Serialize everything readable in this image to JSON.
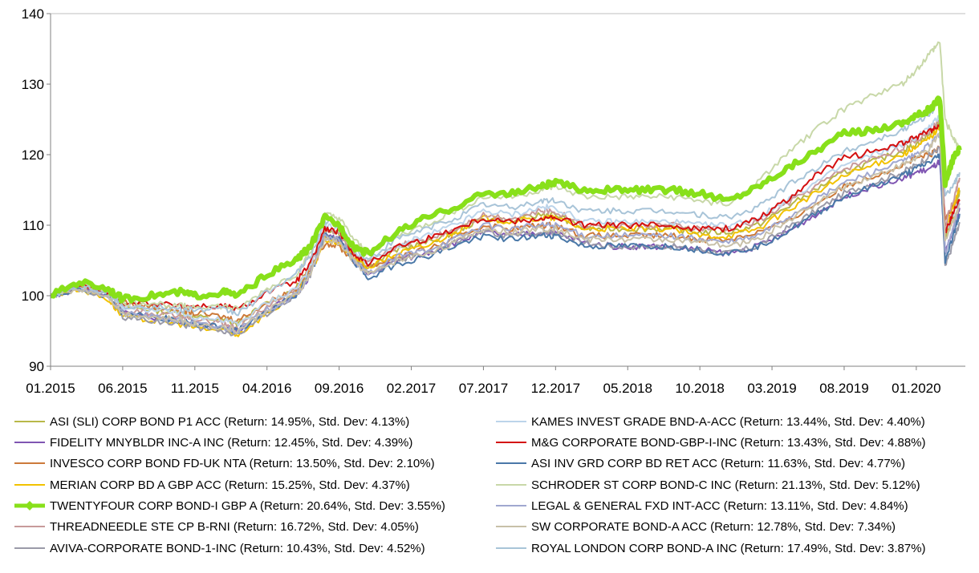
{
  "chart_data": {
    "type": "line",
    "title": "",
    "xlabel": "",
    "ylabel": "",
    "ylim": [
      90,
      140
    ],
    "y_ticks": [
      90,
      100,
      110,
      120,
      130,
      140
    ],
    "x_range": [
      "2015-01",
      "2020-04"
    ],
    "x_ticks": [
      "01.2015",
      "06.2015",
      "11.2015",
      "04.2016",
      "09.2016",
      "02.2017",
      "07.2017",
      "12.2017",
      "05.2018",
      "10.2018",
      "03.2019",
      "08.2019",
      "01.2020"
    ],
    "grid": "horizontal-top-only",
    "legend_position": "bottom",
    "x": [
      "2015-01",
      "2015-03",
      "2015-05",
      "2015-06",
      "2015-08",
      "2015-10",
      "2015-11",
      "2016-01",
      "2016-02",
      "2016-04",
      "2016-06",
      "2016-07",
      "2016-08",
      "2016-09",
      "2016-10",
      "2016-11",
      "2017-01",
      "2017-03",
      "2017-05",
      "2017-07",
      "2017-09",
      "2017-11",
      "2017-12",
      "2018-02",
      "2018-04",
      "2018-06",
      "2018-08",
      "2018-10",
      "2018-12",
      "2019-02",
      "2019-04",
      "2019-06",
      "2019-08",
      "2019-10",
      "2019-12",
      "2020-01",
      "2020-02",
      "2020-02-20",
      "2020-03",
      "2020-03-20",
      "2020-04"
    ],
    "series": [
      {
        "name": "ASI (SLI) CORP BOND P1 ACC",
        "return": "14.95%",
        "std_dev": "4.13%",
        "color": "#b8b848",
        "width": 2,
        "values": [
          100,
          101.5,
          100.5,
          98.5,
          98,
          97.5,
          97,
          96.5,
          96,
          99,
          101,
          104,
          109.5,
          109,
          106,
          104,
          106.5,
          107.5,
          109,
          111,
          110.5,
          111.5,
          111.5,
          109.5,
          109.5,
          109.5,
          109.5,
          109,
          109,
          110,
          112.5,
          115,
          117.5,
          119,
          120.5,
          121.5,
          123,
          124.5,
          108,
          112,
          114.95
        ]
      },
      {
        "name": "FIDELITY MNYBLDR INC-A INC",
        "return": "12.45%",
        "std_dev": "4.39%",
        "color": "#7f55b2",
        "width": 2,
        "values": [
          100,
          101,
          100,
          97.5,
          97,
          96.5,
          96,
          95.5,
          95,
          98,
          100,
          103,
          108.5,
          108,
          105,
          103,
          105,
          106,
          107.5,
          109,
          108.5,
          109,
          109,
          107.5,
          107,
          107,
          107,
          106.5,
          106,
          107,
          109,
          111.5,
          114,
          115.5,
          116.5,
          117.5,
          118,
          119,
          106,
          110,
          112.45
        ]
      },
      {
        "name": "INVESCO CORP BOND FD-UK NTA",
        "return": "13.50%",
        "std_dev": "2.10%",
        "color": "#cc7a3a",
        "width": 2,
        "values": [
          100,
          101.5,
          100.5,
          99,
          98.5,
          98,
          97.5,
          97,
          96.5,
          99,
          101,
          103.5,
          107.5,
          107,
          105,
          104,
          105.5,
          106.5,
          108,
          110,
          109.5,
          110,
          110,
          108.5,
          108.5,
          108.5,
          108.5,
          108,
          108,
          109,
          110.5,
          113,
          115.5,
          117,
          118.5,
          119.5,
          120,
          121,
          111,
          113,
          113.5
        ]
      },
      {
        "name": "MERIAN CORP BD A GBP ACC",
        "return": "15.25%",
        "std_dev": "4.37%",
        "color": "#f2c200",
        "width": 2,
        "values": [
          100,
          101,
          99.5,
          97,
          96.5,
          96,
          95.5,
          95,
          94.5,
          97.5,
          100,
          103,
          108,
          107.5,
          105.5,
          104,
          106,
          107,
          109,
          111,
          110.5,
          111,
          111,
          109.5,
          109.5,
          109.5,
          109.5,
          108.5,
          108.5,
          109.5,
          112,
          114.5,
          117,
          118.5,
          120,
          121,
          122.5,
          124,
          109,
          113,
          115.25
        ]
      },
      {
        "name": "TWENTYFOUR CORP BOND-I GBP A",
        "return": "20.64%",
        "std_dev": "3.55%",
        "color": "#88e01a",
        "width": 6,
        "values": [
          100,
          102,
          101,
          99.5,
          100,
          100.5,
          100,
          100.5,
          100,
          103,
          105,
          107,
          111,
          110,
          107,
          106,
          109,
          111,
          112.5,
          114.5,
          114.5,
          115.5,
          116,
          115,
          115,
          115,
          115,
          114.5,
          113.5,
          115.5,
          118,
          120.5,
          123,
          123.5,
          124.5,
          125.5,
          126.5,
          128,
          116,
          120,
          120.64
        ]
      },
      {
        "name": "THREADNEEDLE STE CP B-RNI",
        "return": "16.72%",
        "std_dev": "4.05%",
        "color": "#c89a9a",
        "width": 2,
        "values": [
          100,
          101.5,
          100.5,
          98,
          97.5,
          97,
          96.5,
          96,
          95.5,
          98.5,
          101,
          104,
          109.5,
          109,
          106,
          104.5,
          107,
          108,
          109.5,
          111.5,
          111,
          112,
          112,
          110,
          110,
          110,
          110,
          109.5,
          109.5,
          110.5,
          113,
          115.5,
          118,
          119.5,
          121,
          122,
          123.5,
          125,
          110,
          114,
          116.72
        ]
      },
      {
        "name": "AVIVA-CORPORATE BOND-1-INC",
        "return": "10.43%",
        "std_dev": "4.52%",
        "color": "#9a9aa8",
        "width": 2,
        "values": [
          100,
          101,
          100,
          97,
          96.5,
          96,
          95.5,
          95,
          94.5,
          97.5,
          100,
          103,
          108.5,
          108,
          105,
          103,
          105,
          106,
          107.5,
          109,
          108.5,
          109,
          109,
          107.5,
          107,
          107,
          107,
          106.5,
          106,
          107,
          109.5,
          112,
          114.5,
          116,
          117.5,
          118.5,
          120,
          121,
          104,
          108,
          110.43
        ]
      },
      {
        "name": "KAMES INVEST GRADE BND-A-ACC",
        "return": "13.44%",
        "std_dev": "4.40%",
        "color": "#bcd4ea",
        "width": 2,
        "values": [
          100,
          101.5,
          100.5,
          98.5,
          98,
          97.5,
          97,
          96.5,
          96,
          99,
          101,
          104,
          110,
          109.5,
          106.5,
          104.5,
          107,
          108.5,
          110,
          112,
          111.5,
          112.5,
          112.5,
          110.5,
          110.5,
          110.5,
          110.5,
          110,
          110,
          111,
          113.5,
          116,
          118.5,
          120,
          121.5,
          122.5,
          124,
          125.5,
          109,
          112,
          113.44
        ]
      },
      {
        "name": "M&G CORPORATE BOND-GBP-I-INC",
        "return": "13.43%",
        "std_dev": "4.88%",
        "color": "#d41010",
        "width": 2,
        "values": [
          100,
          101.5,
          100.5,
          99,
          99,
          98.5,
          98.5,
          98.5,
          98,
          100.5,
          102,
          104.5,
          109.5,
          109,
          106,
          104.5,
          107,
          108,
          109.5,
          111,
          110.5,
          111,
          111,
          110,
          110,
          110,
          110,
          109.5,
          109.5,
          111,
          113.5,
          117,
          119.5,
          120.5,
          121.5,
          122.5,
          123.5,
          124,
          109,
          112,
          113.43
        ]
      },
      {
        "name": "ASI INV GRD CORP BD RET ACC",
        "return": "11.63%",
        "std_dev": "4.77%",
        "color": "#4a78a8",
        "width": 2,
        "values": [
          100,
          101,
          100,
          97.5,
          97,
          96.5,
          96,
          95.5,
          95,
          98,
          100,
          103,
          108.5,
          108,
          105,
          102.5,
          104.5,
          105.5,
          107,
          108.5,
          108,
          108.5,
          108.5,
          107,
          107,
          107,
          107,
          106.5,
          106,
          107,
          109,
          111.5,
          114,
          115.5,
          117,
          118,
          119,
          120,
          105,
          109,
          111.63
        ]
      },
      {
        "name": "SCHRODER ST CORP BOND-C INC",
        "return": "21.13%",
        "std_dev": "5.12%",
        "color": "#c8d8a8",
        "width": 2,
        "values": [
          100,
          101.5,
          101,
          99,
          99,
          98.5,
          98.5,
          98.5,
          98,
          101,
          103,
          106,
          111.5,
          111,
          108,
          106,
          108.5,
          110,
          112,
          114,
          114,
          115,
          115.5,
          114,
          114,
          114,
          114,
          113.5,
          113,
          116,
          120,
          123.5,
          126.5,
          128.5,
          130,
          132,
          134.5,
          136,
          125,
          122,
          121.13
        ]
      },
      {
        "name": "LEGAL & GENERAL FXD INT-ACC",
        "return": "13.11%",
        "std_dev": "4.84%",
        "color": "#a0a8d0",
        "width": 2,
        "values": [
          100,
          101,
          100,
          97.5,
          97,
          96.5,
          96,
          95.5,
          95,
          98,
          100,
          103,
          108.5,
          108,
          105,
          103,
          105.5,
          106.5,
          108,
          110,
          109.5,
          110,
          110,
          108.5,
          108.5,
          108.5,
          108.5,
          108,
          107.5,
          108.5,
          111,
          113.5,
          116,
          117.5,
          119,
          120,
          121.5,
          123,
          106,
          110,
          113.11
        ]
      },
      {
        "name": "SW CORPORATE BOND-A ACC",
        "return": "12.78%",
        "std_dev": "7.34%",
        "color": "#c8c0a8",
        "width": 2,
        "values": [
          100,
          101,
          100,
          97.5,
          97,
          96.5,
          96,
          95.5,
          95,
          98,
          100,
          103,
          108,
          107.5,
          105,
          103,
          105,
          106,
          107.5,
          109.5,
          109,
          109.5,
          109.5,
          108,
          108,
          108,
          108,
          107.5,
          107,
          108,
          110.5,
          113,
          115.5,
          117,
          118.5,
          119.5,
          121,
          123,
          108,
          111,
          112.78
        ]
      },
      {
        "name": "ROYAL LONDON CORP BOND-A INC",
        "return": "17.49%",
        "std_dev": "3.87%",
        "color": "#a8c4d8",
        "width": 2,
        "values": [
          100,
          101.5,
          100.5,
          98.5,
          98.5,
          98,
          98,
          98,
          97.5,
          100.5,
          103,
          105.5,
          110.5,
          110,
          107,
          105,
          108,
          109.5,
          111,
          113,
          112.5,
          113.5,
          113.5,
          112,
          112,
          112,
          112,
          111.5,
          111,
          112.5,
          115.5,
          118,
          120.5,
          122,
          123.5,
          124.5,
          126,
          127.5,
          114,
          116,
          117.49
        ]
      }
    ]
  }
}
